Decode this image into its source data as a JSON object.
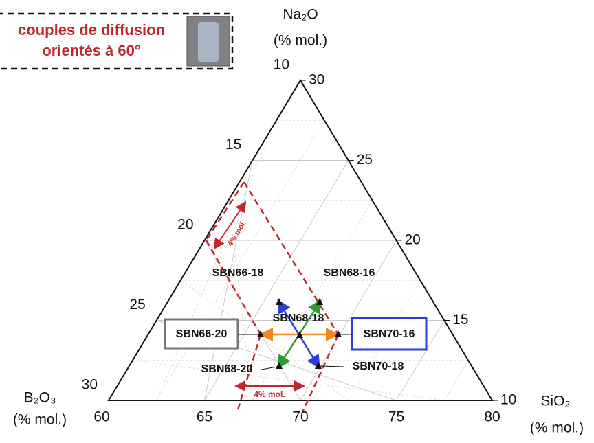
{
  "header": {
    "lines": [
      "couples de diffusion",
      "orientés à 60°"
    ]
  },
  "axes": {
    "top": {
      "name": "Na₂O",
      "unit": "(% mol.)"
    },
    "left": {
      "name": "B₂O₃",
      "unit": "(% mol.)"
    },
    "right": {
      "name": "SiO₂",
      "unit": "(% mol.)"
    }
  },
  "ticks": {
    "bottom": [
      "60",
      "65",
      "70",
      "75",
      "80"
    ],
    "left": [
      "30",
      "25",
      "20",
      "15",
      "10"
    ],
    "right": [
      "10",
      "15",
      "20",
      "25",
      "30"
    ]
  },
  "annotations": [
    "4% mol.",
    "4% mol."
  ],
  "points": [
    {
      "label": "SBN66-18"
    },
    {
      "label": "SBN68-16"
    },
    {
      "label": "SBN68-18"
    },
    {
      "label": "SBN66-20"
    },
    {
      "label": "SBN70-16"
    },
    {
      "label": "SBN68-20"
    },
    {
      "label": "SBN70-18"
    }
  ]
}
